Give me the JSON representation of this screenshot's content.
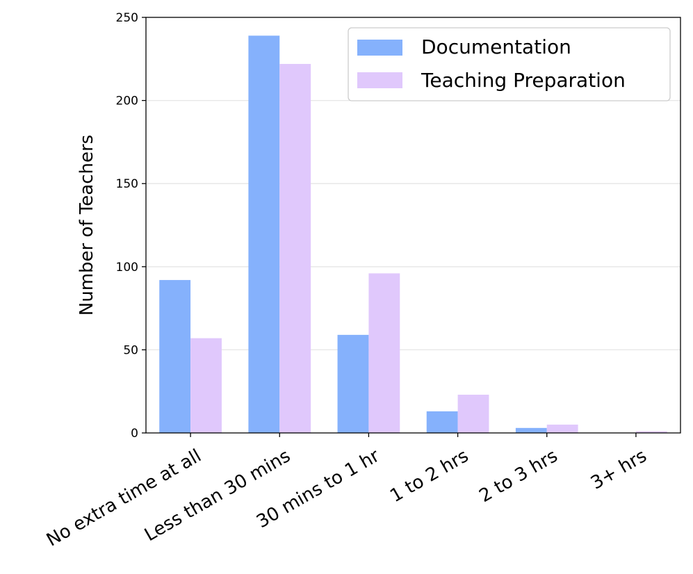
{
  "chart_data": {
    "type": "bar",
    "title": "",
    "xlabel": "",
    "ylabel": "Number of Teachers",
    "ylim": [
      0,
      250
    ],
    "yticks": [
      0,
      50,
      100,
      150,
      200,
      250
    ],
    "grid": "horizontal",
    "legend_position": "top-right",
    "categories": [
      "No extra time at all",
      "Less than 30 mins",
      "30 mins to 1 hr",
      "1 to 2 hrs",
      "2 to 3 hrs",
      "3+ hrs"
    ],
    "series": [
      {
        "name": "Documentation",
        "color": "#85b1fc",
        "values": [
          92,
          239,
          59,
          13,
          3,
          0
        ]
      },
      {
        "name": "Teaching Preparation",
        "color": "#e0c8fc",
        "values": [
          57,
          222,
          96,
          23,
          5,
          1
        ]
      }
    ]
  }
}
